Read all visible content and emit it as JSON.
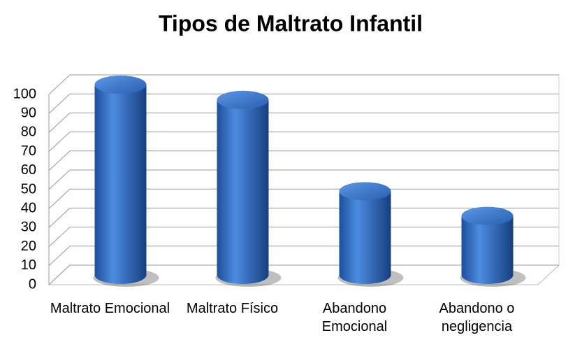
{
  "chart_data": {
    "type": "bar",
    "title": "Tipos de Maltrato Infantil",
    "categories": [
      "Maltrato Emocional",
      "Maltrato Físico",
      "Abandono Emocional",
      "Abandono o negligencia"
    ],
    "values": [
      100,
      92,
      44,
      31
    ],
    "color": "#2e66b8",
    "ylim": [
      0,
      100
    ],
    "yticks": [
      0,
      10,
      20,
      30,
      40,
      50,
      60,
      70,
      80,
      90,
      100
    ],
    "grid": true
  }
}
